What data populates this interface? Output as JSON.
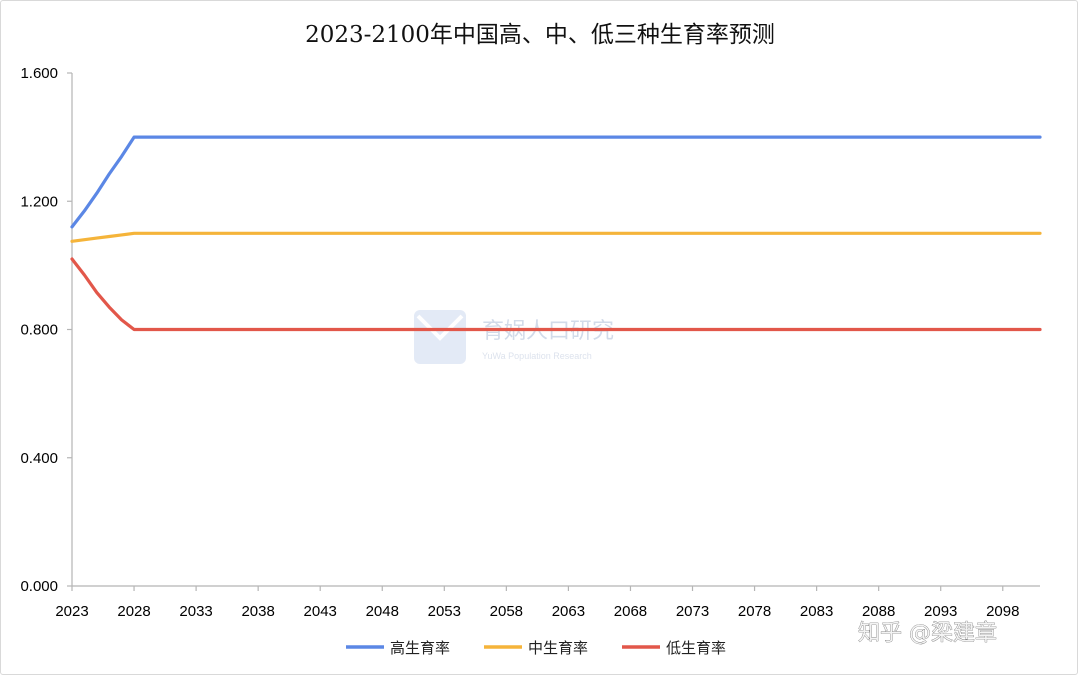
{
  "chart_data": {
    "type": "line",
    "title": "2023-2100年中国高、中、低三种生育率预测",
    "xlabel": "",
    "ylabel": "",
    "ylim": [
      0,
      1.6
    ],
    "yticks": [
      "0.000",
      "0.400",
      "0.800",
      "1.200",
      "1.600"
    ],
    "xrange": [
      2023,
      2101
    ],
    "xticks": [
      "2023",
      "2028",
      "2033",
      "2038",
      "2043",
      "2048",
      "2053",
      "2058",
      "2063",
      "2068",
      "2073",
      "2078",
      "2083",
      "2088",
      "2093",
      "2098"
    ],
    "grid": false,
    "legend_position": "bottom",
    "series": [
      {
        "name": "高生育率",
        "color": "#5b87e5",
        "x": [
          2023,
          2024,
          2025,
          2026,
          2027,
          2028,
          2101
        ],
        "values": [
          1.12,
          1.17,
          1.225,
          1.285,
          1.34,
          1.4,
          1.4
        ]
      },
      {
        "name": "中生育率",
        "color": "#f5b43a",
        "x": [
          2023,
          2024,
          2025,
          2026,
          2027,
          2028,
          2101
        ],
        "values": [
          1.075,
          1.08,
          1.085,
          1.09,
          1.095,
          1.1,
          1.1
        ]
      },
      {
        "name": "低生育率",
        "color": "#e2574a",
        "x": [
          2023,
          2024,
          2025,
          2026,
          2027,
          2028,
          2101
        ],
        "values": [
          1.02,
          0.97,
          0.915,
          0.87,
          0.83,
          0.8,
          0.8
        ]
      }
    ]
  },
  "watermark": {
    "text": "育娲人口研究",
    "subtext": "YuWa Population Research"
  },
  "credit": "知乎 @梁建章"
}
